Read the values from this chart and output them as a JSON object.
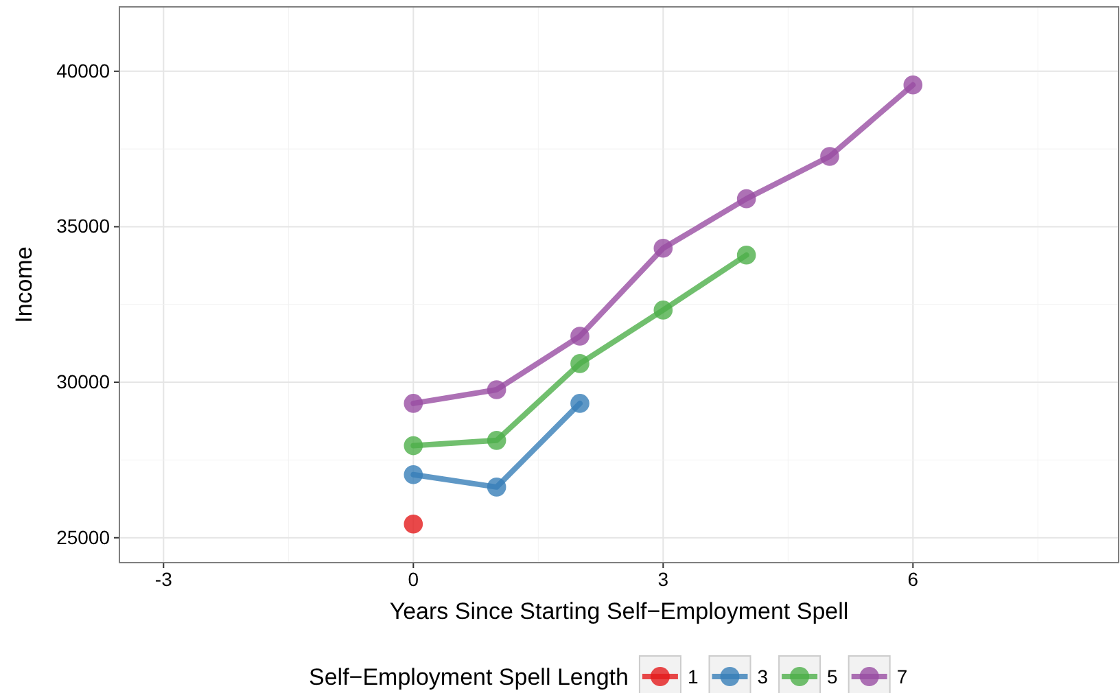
{
  "chart_data": {
    "type": "line",
    "xlabel": "Years Since Starting Self−Employment Spell",
    "ylabel": "Income",
    "legend_title": "Self−Employment Spell Length",
    "legend": "bottom",
    "grid": true,
    "marker": "circle",
    "line_style": "solid",
    "xlim": [
      -3.53,
      8.47
    ],
    "xticks": [
      -3,
      0,
      3,
      6
    ],
    "ylim": [
      24200,
      42070
    ],
    "yticks": [
      25000,
      30000,
      35000,
      40000
    ],
    "series": [
      {
        "name": "1",
        "color": "#e41a1c",
        "x": [
          0
        ],
        "values": [
          25440
        ]
      },
      {
        "name": "3",
        "color": "#377eb8",
        "x": [
          0,
          1,
          2
        ],
        "values": [
          27030,
          26630,
          29320
        ]
      },
      {
        "name": "5",
        "color": "#4daf4a",
        "x": [
          0,
          1,
          2,
          3,
          4
        ],
        "values": [
          27960,
          28130,
          30600,
          32320,
          34090
        ]
      },
      {
        "name": "7",
        "color": "#984ea3",
        "x": [
          0,
          1,
          2,
          3,
          4,
          5,
          6
        ],
        "values": [
          29320,
          29760,
          31480,
          34310,
          35900,
          37260,
          39560
        ]
      }
    ]
  }
}
